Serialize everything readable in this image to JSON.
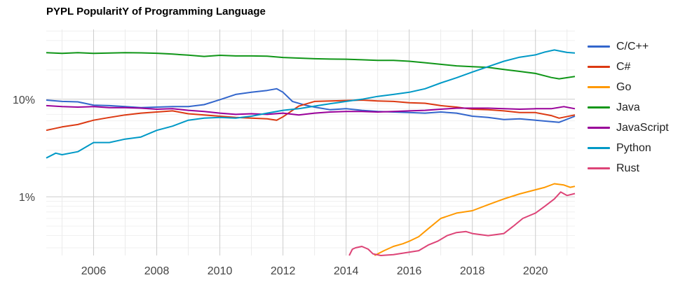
{
  "chart_data": {
    "type": "line",
    "title": "PYPL PopularitY of Programming Language",
    "y_scale": "log",
    "ylim": [
      0.25,
      52
    ],
    "xlim": [
      2004.5,
      2021.25
    ],
    "y_ticks": [
      {
        "value": 10,
        "label": "10%"
      },
      {
        "value": 1,
        "label": "1%"
      }
    ],
    "x_ticks": [
      2006,
      2008,
      2010,
      2012,
      2014,
      2016,
      2018,
      2020
    ],
    "x_tick_labels": [
      "2006",
      "2008",
      "2010",
      "2012",
      "2014",
      "2016",
      "2018",
      "2020"
    ],
    "grid": true,
    "legend_position": "right",
    "series": [
      {
        "name": "C/C++",
        "color": "#3366cc",
        "points": [
          [
            2004.5,
            9.8
          ],
          [
            2005,
            9.5
          ],
          [
            2005.5,
            9.4
          ],
          [
            2006,
            8.7
          ],
          [
            2006.5,
            8.6
          ],
          [
            2007,
            8.4
          ],
          [
            2007.5,
            8.2
          ],
          [
            2008,
            8.3
          ],
          [
            2008.5,
            8.4
          ],
          [
            2009,
            8.4
          ],
          [
            2009.5,
            8.8
          ],
          [
            2010,
            9.9
          ],
          [
            2010.5,
            11.2
          ],
          [
            2011,
            11.8
          ],
          [
            2011.5,
            12.3
          ],
          [
            2011.8,
            12.8
          ],
          [
            2012,
            11.8
          ],
          [
            2012.3,
            9.5
          ],
          [
            2012.7,
            8.7
          ],
          [
            2013,
            8.3
          ],
          [
            2013.5,
            7.8
          ],
          [
            2014,
            8.0
          ],
          [
            2014.5,
            7.7
          ],
          [
            2015,
            7.5
          ],
          [
            2015.5,
            7.4
          ],
          [
            2016,
            7.3
          ],
          [
            2016.5,
            7.2
          ],
          [
            2017,
            7.4
          ],
          [
            2017.5,
            7.2
          ],
          [
            2018,
            6.7
          ],
          [
            2018.5,
            6.5
          ],
          [
            2019,
            6.2
          ],
          [
            2019.5,
            6.3
          ],
          [
            2020,
            6.1
          ],
          [
            2020.5,
            5.9
          ],
          [
            2020.75,
            5.8
          ],
          [
            2021.25,
            6.7
          ]
        ]
      },
      {
        "name": "C#",
        "color": "#dc3912",
        "points": [
          [
            2004.5,
            4.8
          ],
          [
            2005,
            5.2
          ],
          [
            2005.5,
            5.5
          ],
          [
            2006,
            6.1
          ],
          [
            2006.5,
            6.5
          ],
          [
            2007,
            6.9
          ],
          [
            2007.5,
            7.2
          ],
          [
            2008,
            7.4
          ],
          [
            2008.5,
            7.6
          ],
          [
            2009,
            7.1
          ],
          [
            2009.5,
            6.9
          ],
          [
            2010,
            6.7
          ],
          [
            2010.5,
            6.5
          ],
          [
            2011,
            6.4
          ],
          [
            2011.5,
            6.3
          ],
          [
            2011.8,
            6.1
          ],
          [
            2012,
            6.6
          ],
          [
            2012.5,
            8.5
          ],
          [
            2013,
            9.5
          ],
          [
            2013.5,
            9.6
          ],
          [
            2014,
            9.7
          ],
          [
            2014.5,
            9.8
          ],
          [
            2015,
            9.6
          ],
          [
            2015.5,
            9.5
          ],
          [
            2016,
            9.2
          ],
          [
            2016.5,
            9.1
          ],
          [
            2017,
            8.6
          ],
          [
            2017.5,
            8.3
          ],
          [
            2018,
            7.9
          ],
          [
            2018.5,
            7.8
          ],
          [
            2019,
            7.6
          ],
          [
            2019.5,
            7.3
          ],
          [
            2020,
            7.3
          ],
          [
            2020.5,
            6.8
          ],
          [
            2020.75,
            6.4
          ],
          [
            2021.25,
            6.9
          ]
        ]
      },
      {
        "name": "Go",
        "color": "#ff9900",
        "points": [
          [
            2014.9,
            0.25
          ],
          [
            2015.2,
            0.28
          ],
          [
            2015.5,
            0.31
          ],
          [
            2015.8,
            0.33
          ],
          [
            2016,
            0.35
          ],
          [
            2016.3,
            0.39
          ],
          [
            2016.6,
            0.47
          ],
          [
            2017,
            0.6
          ],
          [
            2017.5,
            0.68
          ],
          [
            2018,
            0.72
          ],
          [
            2018.5,
            0.83
          ],
          [
            2019,
            0.95
          ],
          [
            2019.5,
            1.07
          ],
          [
            2020,
            1.18
          ],
          [
            2020.3,
            1.25
          ],
          [
            2020.6,
            1.36
          ],
          [
            2020.9,
            1.32
          ],
          [
            2021.1,
            1.25
          ],
          [
            2021.25,
            1.28
          ]
        ]
      },
      {
        "name": "Java",
        "color": "#109618",
        "points": [
          [
            2004.5,
            30
          ],
          [
            2005,
            29.5
          ],
          [
            2005.5,
            30
          ],
          [
            2006,
            29.5
          ],
          [
            2006.5,
            29.8
          ],
          [
            2007,
            30
          ],
          [
            2007.5,
            29.9
          ],
          [
            2008,
            29.6
          ],
          [
            2008.5,
            29.0
          ],
          [
            2009,
            28.3
          ],
          [
            2009.5,
            27.5
          ],
          [
            2010,
            28.2
          ],
          [
            2010.5,
            27.8
          ],
          [
            2011,
            27.8
          ],
          [
            2011.5,
            27.6
          ],
          [
            2012,
            26.8
          ],
          [
            2012.5,
            26.4
          ],
          [
            2013,
            26.0
          ],
          [
            2013.5,
            25.8
          ],
          [
            2014,
            25.7
          ],
          [
            2014.5,
            25.4
          ],
          [
            2015,
            25.0
          ],
          [
            2015.5,
            25.0
          ],
          [
            2016,
            24.5
          ],
          [
            2016.5,
            23.7
          ],
          [
            2017,
            22.8
          ],
          [
            2017.5,
            22.0
          ],
          [
            2018,
            21.6
          ],
          [
            2018.5,
            21.2
          ],
          [
            2019,
            20.2
          ],
          [
            2019.5,
            19.3
          ],
          [
            2020,
            18.4
          ],
          [
            2020.5,
            16.7
          ],
          [
            2020.75,
            16.2
          ],
          [
            2021.25,
            17.1
          ]
        ]
      },
      {
        "name": "JavaScript",
        "color": "#990099",
        "points": [
          [
            2004.5,
            8.6
          ],
          [
            2005,
            8.4
          ],
          [
            2005.5,
            8.3
          ],
          [
            2006,
            8.4
          ],
          [
            2006.5,
            8.2
          ],
          [
            2007,
            8.2
          ],
          [
            2007.5,
            8.1
          ],
          [
            2008,
            7.9
          ],
          [
            2008.5,
            8.0
          ],
          [
            2009,
            7.7
          ],
          [
            2009.5,
            7.5
          ],
          [
            2010,
            7.2
          ],
          [
            2010.5,
            7.0
          ],
          [
            2011,
            7.1
          ],
          [
            2011.5,
            7.0
          ],
          [
            2012,
            7.2
          ],
          [
            2012.5,
            6.9
          ],
          [
            2013,
            7.2
          ],
          [
            2013.5,
            7.4
          ],
          [
            2014,
            7.5
          ],
          [
            2014.5,
            7.5
          ],
          [
            2015,
            7.4
          ],
          [
            2015.5,
            7.5
          ],
          [
            2016,
            7.6
          ],
          [
            2016.5,
            7.7
          ],
          [
            2017,
            7.9
          ],
          [
            2017.5,
            8.1
          ],
          [
            2018,
            8.1
          ],
          [
            2018.5,
            8.1
          ],
          [
            2019,
            8.0
          ],
          [
            2019.5,
            7.9
          ],
          [
            2020,
            8.0
          ],
          [
            2020.5,
            8.0
          ],
          [
            2020.9,
            8.4
          ],
          [
            2021.25,
            8.0
          ]
        ]
      },
      {
        "name": "Python",
        "color": "#0099c6",
        "points": [
          [
            2004.5,
            2.5
          ],
          [
            2004.8,
            2.8
          ],
          [
            2005,
            2.7
          ],
          [
            2005.5,
            2.9
          ],
          [
            2006,
            3.6
          ],
          [
            2006.5,
            3.6
          ],
          [
            2007,
            3.9
          ],
          [
            2007.5,
            4.1
          ],
          [
            2008,
            4.8
          ],
          [
            2008.5,
            5.3
          ],
          [
            2009,
            6.1
          ],
          [
            2009.5,
            6.4
          ],
          [
            2010,
            6.5
          ],
          [
            2010.5,
            6.4
          ],
          [
            2011,
            6.7
          ],
          [
            2011.5,
            7.2
          ],
          [
            2012,
            7.7
          ],
          [
            2012.5,
            8.0
          ],
          [
            2013,
            8.5
          ],
          [
            2013.5,
            9.0
          ],
          [
            2014,
            9.5
          ],
          [
            2014.5,
            10.0
          ],
          [
            2015,
            10.7
          ],
          [
            2015.5,
            11.2
          ],
          [
            2016,
            11.8
          ],
          [
            2016.5,
            12.8
          ],
          [
            2017,
            14.7
          ],
          [
            2017.5,
            16.6
          ],
          [
            2018,
            19.0
          ],
          [
            2018.5,
            21.6
          ],
          [
            2019,
            24.5
          ],
          [
            2019.5,
            27.0
          ],
          [
            2020,
            28.5
          ],
          [
            2020.3,
            30.5
          ],
          [
            2020.6,
            32
          ],
          [
            2021,
            30.2
          ],
          [
            2021.25,
            29.8
          ]
        ]
      },
      {
        "name": "Rust",
        "color": "#dd4477",
        "points": [
          [
            2014.1,
            0.25
          ],
          [
            2014.2,
            0.29
          ],
          [
            2014.3,
            0.3
          ],
          [
            2014.5,
            0.31
          ],
          [
            2014.7,
            0.29
          ],
          [
            2014.85,
            0.26
          ],
          [
            2015.1,
            0.25
          ],
          [
            2015.5,
            0.255
          ],
          [
            2016,
            0.27
          ],
          [
            2016.3,
            0.28
          ],
          [
            2016.6,
            0.32
          ],
          [
            2016.9,
            0.35
          ],
          [
            2017.2,
            0.4
          ],
          [
            2017.5,
            0.43
          ],
          [
            2017.8,
            0.44
          ],
          [
            2018,
            0.42
          ],
          [
            2018.5,
            0.4
          ],
          [
            2019,
            0.42
          ],
          [
            2019.3,
            0.5
          ],
          [
            2019.6,
            0.6
          ],
          [
            2020,
            0.68
          ],
          [
            2020.3,
            0.8
          ],
          [
            2020.6,
            0.95
          ],
          [
            2020.8,
            1.12
          ],
          [
            2021,
            1.03
          ],
          [
            2021.25,
            1.08
          ]
        ]
      }
    ]
  }
}
